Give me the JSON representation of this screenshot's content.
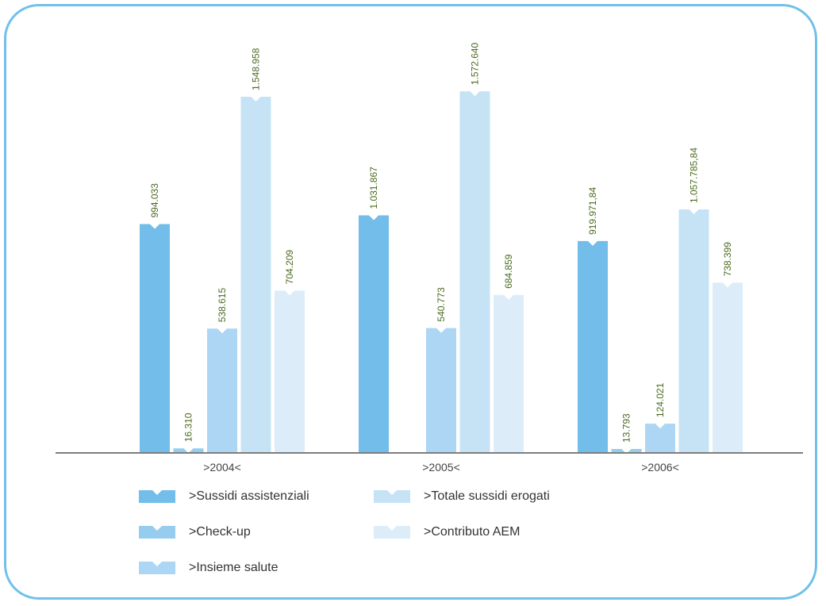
{
  "chart_data": {
    "type": "bar",
    "categories": [
      ">2004<",
      ">2005<",
      ">2006<"
    ],
    "series": [
      {
        "name": ">Sussidi assistenziali",
        "color": "#72bde9",
        "values": [
          994033,
          1031867,
          919971.84
        ],
        "labels": [
          "994.033",
          "1.031.867",
          "919.971,84"
        ]
      },
      {
        "name": ">Check-up",
        "color": "#96cdef",
        "values": [
          16310,
          null,
          13793
        ],
        "labels": [
          "16.310",
          "",
          "13.793"
        ]
      },
      {
        "name": ">Insieme salute",
        "color": "#acd6f3",
        "values": [
          538615,
          540773,
          124021
        ],
        "labels": [
          "538.615",
          "540.773",
          "124.021"
        ]
      },
      {
        "name": ">Totale sussidi erogati",
        "color": "#c6e3f6",
        "values": [
          1548958,
          1572640,
          1057785.84
        ],
        "labels": [
          "1.548.958",
          "1.572.640",
          "1.057.785,84"
        ]
      },
      {
        "name": ">Contributo AEM",
        "color": "#dcedf9",
        "values": [
          704209,
          684859,
          738399
        ],
        "labels": [
          "704.209",
          "684.859",
          "738.399"
        ]
      }
    ],
    "title": "",
    "xlabel": "",
    "ylabel": "",
    "ylim": [
      0,
      1750000
    ],
    "grid": false,
    "legend_position": "bottom-left"
  },
  "legend": {
    "items": [
      {
        "label": ">Sussidi assistenziali",
        "color": "#72bde9"
      },
      {
        "label": ">Check-up",
        "color": "#96cdef"
      },
      {
        "label": ">Insieme salute",
        "color": "#acd6f3"
      },
      {
        "label": ">Totale sussidi erogati",
        "color": "#c6e3f6"
      },
      {
        "label": ">Contributo AEM",
        "color": "#dcedf9"
      }
    ]
  },
  "colors": {
    "frame_border": "#72c0ea",
    "axis": "#7d7d7d",
    "value_label": "#4a6a1e"
  }
}
